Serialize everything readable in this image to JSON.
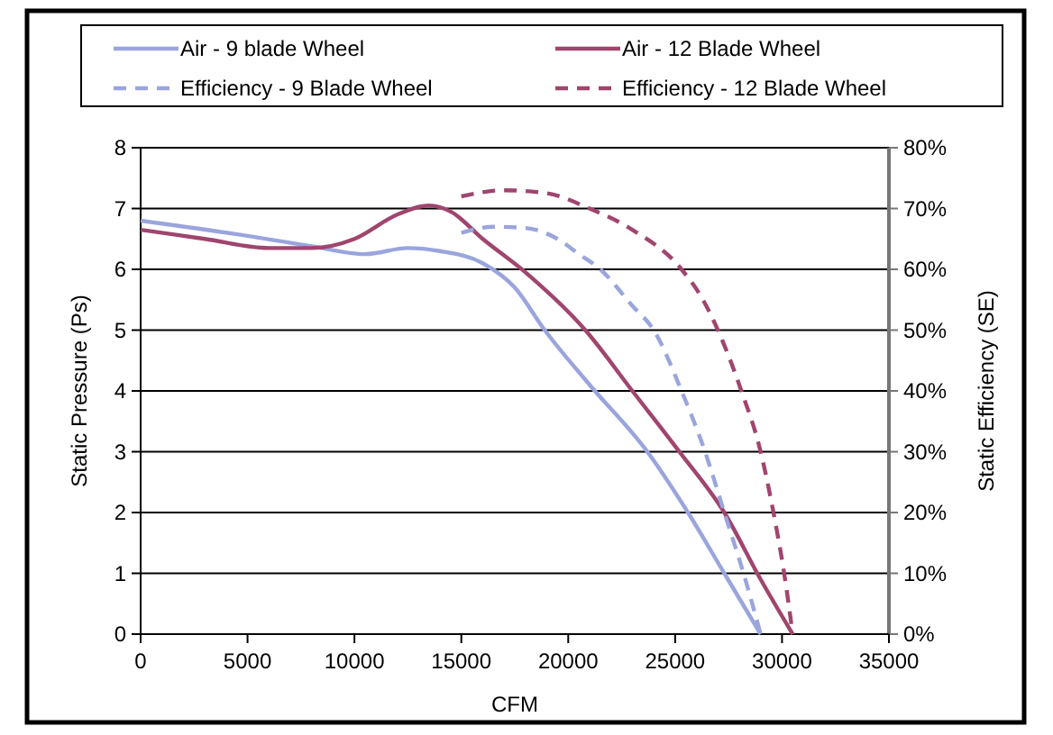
{
  "chart_data": {
    "type": "line",
    "xlabel": "CFM",
    "ylabel": "Static Pressure (Ps)",
    "y2label": "Static Efficiency (SE)",
    "xlim": [
      0,
      35000
    ],
    "xticks": [
      0,
      5000,
      10000,
      15000,
      20000,
      25000,
      30000,
      35000
    ],
    "ylim": [
      0,
      8
    ],
    "yticks": [
      0,
      1,
      2,
      3,
      4,
      5,
      6,
      7,
      8
    ],
    "y2lim": [
      0,
      80
    ],
    "y2ticks": [
      {
        "value": 0,
        "label": "0%"
      },
      {
        "value": 10,
        "label": "10%"
      },
      {
        "value": 20,
        "label": "20%"
      },
      {
        "value": 30,
        "label": "30%"
      },
      {
        "value": 40,
        "label": "40%"
      },
      {
        "value": 50,
        "label": "50%"
      },
      {
        "value": 60,
        "label": "60%"
      },
      {
        "value": 70,
        "label": "70%"
      },
      {
        "value": 80,
        "label": "80%"
      }
    ],
    "grid": "y",
    "legend": "top",
    "series": [
      {
        "name": "Air - 9 blade Wheel",
        "color": "#9aa5dd",
        "line_style": "solid",
        "x": [
          0,
          5000,
          8000,
          10500,
          12500,
          14000,
          16000,
          17500,
          18900,
          21000,
          23700,
          25600,
          27300,
          29000
        ],
        "values": [
          6.8,
          6.55,
          6.38,
          6.25,
          6.35,
          6.3,
          6.1,
          5.7,
          5,
          4.1,
          3,
          2,
          1,
          0
        ]
      },
      {
        "name": "Air - 12 Blade Wheel",
        "color": "#a0456e",
        "line_style": "solid",
        "x": [
          0,
          3000,
          6000,
          8000,
          10000,
          12000,
          13500,
          14500,
          16000,
          18000,
          20800,
          23000,
          25200,
          27300,
          29000,
          30500
        ],
        "values": [
          6.65,
          6.5,
          6.35,
          6.35,
          6.5,
          6.9,
          7.05,
          6.95,
          6.5,
          5.95,
          5,
          4,
          3,
          2,
          0.9,
          0
        ]
      },
      {
        "name": "Efficiency - 9 Blade Wheel",
        "color": "#9aa5dd",
        "line_style": "dashed",
        "axis": "y2",
        "x": [
          15000,
          16500,
          18000,
          19500,
          20500,
          21500,
          23000,
          24000,
          25300,
          26400,
          27300,
          28200,
          29000
        ],
        "values": [
          66,
          67,
          66.8,
          65,
          62.5,
          60,
          54,
          50,
          40,
          30,
          20,
          10,
          0
        ]
      },
      {
        "name": "Efficiency - 12 Blade Wheel",
        "color": "#a0456e",
        "line_style": "dashed",
        "axis": "y2",
        "x": [
          15000,
          17000,
          19000,
          21000,
          23000,
          25300,
          26300,
          27000,
          28100,
          29000,
          29600,
          30100,
          30500
        ],
        "values": [
          72,
          73,
          72.5,
          70,
          66.5,
          60,
          55,
          50,
          40,
          30,
          20,
          10,
          0
        ]
      }
    ]
  }
}
